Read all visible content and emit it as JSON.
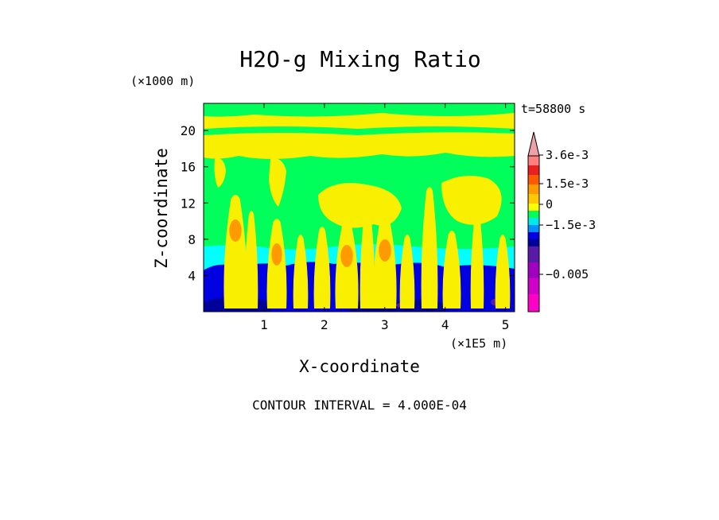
{
  "chart_data": {
    "type": "heatmap",
    "title": "H2O-g Mixing Ratio",
    "time_label": "t=58800 s",
    "xlabel": "X-coordinate",
    "ylabel": "Z-coordinate",
    "x_unit": "(×1E5 m)",
    "y_unit": "(×1000 m)",
    "x_ticks": [
      1,
      2,
      3,
      4,
      5
    ],
    "y_ticks": [
      4,
      8,
      12,
      16,
      20
    ],
    "xlim": [
      0,
      5.15
    ],
    "ylim": [
      0,
      23
    ],
    "footer": "CONTOUR INTERVAL = 4.000E-04",
    "colorbar": {
      "labels": [
        "3.6e-3",
        "1.5e-3",
        "0",
        "−1.5e-3",
        "−0.005"
      ],
      "colors": [
        "#f0a0a8",
        "#ff7f7f",
        "#e82020",
        "#ff5a00",
        "#ff9a00",
        "#ffc800",
        "#ffff00",
        "#f8f000",
        "#00ff5a",
        "#00e8e8",
        "#0090ff",
        "#0000e0",
        "#00009a",
        "#5a1aa8",
        "#a000c0",
        "#d000c8",
        "#ff00c8"
      ]
    },
    "field": {
      "surface": "#ff00c8",
      "low_layer": "#0000e0",
      "moist_band": "#00ffff",
      "mid": "#00ff5a",
      "plume": "#f8f000",
      "core": "#ff9a00"
    }
  }
}
